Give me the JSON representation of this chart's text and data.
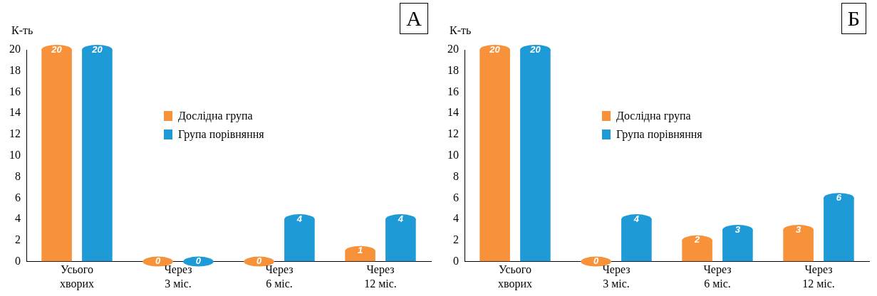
{
  "chart_data": [
    {
      "type": "bar",
      "title": "А",
      "ylabel": "К-ть",
      "categories": [
        "Усього хворих",
        "Через 3 міс.",
        "Через 6 міс.",
        "Через 12 міс."
      ],
      "series": [
        {
          "name": "Дослідна група",
          "color": "#f7923a",
          "values": [
            20,
            0,
            0,
            1
          ]
        },
        {
          "name": "Група порівняння",
          "color": "#1e9ad6",
          "values": [
            20,
            0,
            4,
            4
          ]
        }
      ],
      "ylim": [
        0,
        20
      ],
      "yticks": [
        0,
        2,
        4,
        6,
        8,
        10,
        12,
        14,
        16,
        18,
        20
      ],
      "grid": false,
      "legend": "center",
      "data_labels": true
    },
    {
      "type": "bar",
      "title": "Б",
      "ylabel": "К-ть",
      "categories": [
        "Усього хворих",
        "Через 3 міс.",
        "Через 6 міс.",
        "Через 12 міс."
      ],
      "series": [
        {
          "name": "Дослідна група",
          "color": "#f7923a",
          "values": [
            20,
            0,
            2,
            3
          ]
        },
        {
          "name": "Група порівняння",
          "color": "#1e9ad6",
          "values": [
            20,
            4,
            3,
            6
          ]
        }
      ],
      "ylim": [
        0,
        20
      ],
      "yticks": [
        0,
        2,
        4,
        6,
        8,
        10,
        12,
        14,
        16,
        18,
        20
      ],
      "grid": false,
      "legend": "center",
      "data_labels": true
    }
  ]
}
